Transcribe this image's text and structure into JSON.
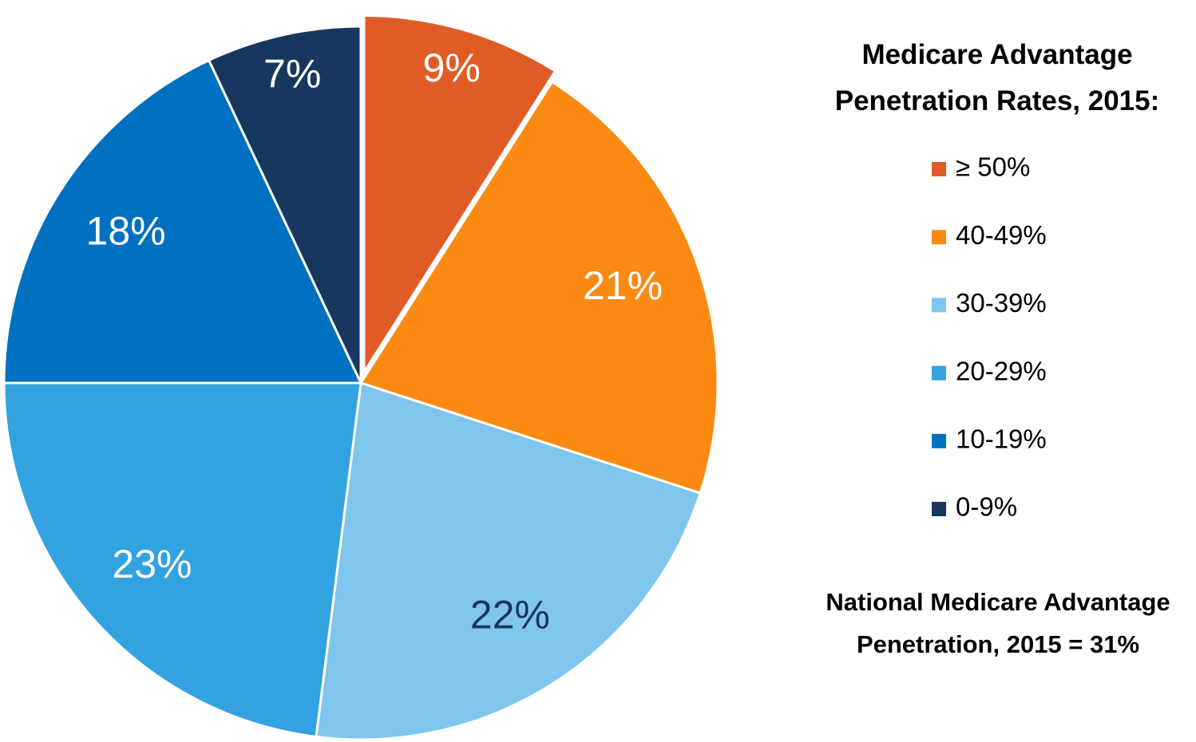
{
  "chart_data": {
    "type": "pie",
    "legend_title": "Medicare Advantage Penetration Rates, 2015:",
    "categories": [
      "≥ 50%",
      "40-49%",
      "30-39%",
      "20-29%",
      "10-19%",
      "0-9%"
    ],
    "values": [
      9,
      21,
      22,
      23,
      18,
      7
    ],
    "value_labels": [
      "9%",
      "21%",
      "22%",
      "23%",
      "18%",
      "7%"
    ],
    "colors": [
      "#e05c27",
      "#fb8a13",
      "#7fc5ec",
      "#33a2e0",
      "#0070c0",
      "#17375e"
    ],
    "label_colors": [
      "#ffffff",
      "#ffffff",
      "#17375e",
      "#ffffff",
      "#ffffff",
      "#ffffff"
    ],
    "legend": "right",
    "annotation": "National Medicare Advantage Penetration, 2015 = 31%"
  }
}
